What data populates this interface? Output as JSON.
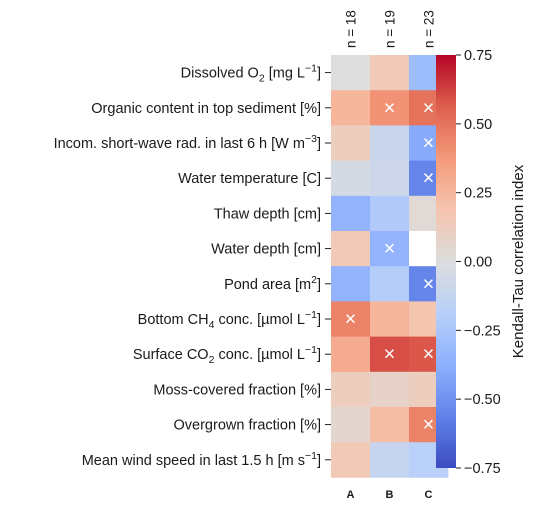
{
  "chart_data": {
    "type": "heatmap",
    "rows": [
      {
        "prefix": "Dissolved O",
        "sub": "2",
        "suffix": " [mg L",
        "sup": "−1",
        "end": "]"
      },
      {
        "prefix": "Organic content in top sediment [%]",
        "sub": "",
        "suffix": "",
        "sup": "",
        "end": ""
      },
      {
        "prefix": "Incom. short-wave rad. in last 6 h [W m",
        "sub": "",
        "suffix": "",
        "sup": "−3",
        "end": "]"
      },
      {
        "prefix": "Water temperature [C]",
        "sub": "",
        "suffix": "",
        "sup": "",
        "end": ""
      },
      {
        "prefix": "Thaw depth [cm]",
        "sub": "",
        "suffix": "",
        "sup": "",
        "end": ""
      },
      {
        "prefix": "Water depth [cm]",
        "sub": "",
        "suffix": "",
        "sup": "",
        "end": ""
      },
      {
        "prefix": "Pond area [m",
        "sub": "",
        "suffix": "",
        "sup": "2",
        "end": "]"
      },
      {
        "prefix": "Bottom CH",
        "sub": "4",
        "suffix": " conc. [µmol L",
        "sup": "−1",
        "end": "]"
      },
      {
        "prefix": "Surface CO",
        "sub": "2",
        "suffix": " conc. [µmol L",
        "sup": "−1",
        "end": "]"
      },
      {
        "prefix": "Moss-covered fraction [%]",
        "sub": "",
        "suffix": "",
        "sup": "",
        "end": ""
      },
      {
        "prefix": "Overgrown fraction [%]",
        "sub": "",
        "suffix": "",
        "sup": "",
        "end": ""
      },
      {
        "prefix": "Mean wind speed in last 1.5 h [m s",
        "sub": "",
        "suffix": "",
        "sup": "−1",
        "end": "]"
      }
    ],
    "columns": [
      "A",
      "B",
      "C"
    ],
    "n_labels": [
      "n = 18",
      "n = 19",
      "n = 23"
    ],
    "values": [
      [
        0.0,
        0.15,
        -0.3
      ],
      [
        0.25,
        0.4,
        0.5
      ],
      [
        0.12,
        -0.1,
        -0.4
      ],
      [
        -0.05,
        -0.08,
        -0.55
      ],
      [
        -0.35,
        -0.22,
        0.03
      ],
      [
        0.15,
        -0.35,
        null
      ],
      [
        -0.35,
        -0.2,
        -0.55
      ],
      [
        0.45,
        0.25,
        0.18
      ],
      [
        0.3,
        0.6,
        0.58
      ],
      [
        0.12,
        0.08,
        0.12
      ],
      [
        0.05,
        0.22,
        0.45
      ],
      [
        0.15,
        -0.12,
        -0.18
      ]
    ],
    "significant": [
      [
        false,
        false,
        false
      ],
      [
        false,
        true,
        true
      ],
      [
        false,
        false,
        true
      ],
      [
        false,
        false,
        true
      ],
      [
        false,
        false,
        false
      ],
      [
        false,
        true,
        false
      ],
      [
        false,
        false,
        true
      ],
      [
        true,
        false,
        false
      ],
      [
        false,
        true,
        true
      ],
      [
        false,
        false,
        false
      ],
      [
        false,
        false,
        true
      ],
      [
        false,
        false,
        false
      ]
    ],
    "marker": "×",
    "colorbar": {
      "label": "Kendall-Tau correlation index",
      "range": [
        -0.75,
        0.75
      ],
      "ticks": [
        "0.75",
        "0.50",
        "0.25",
        "0.00",
        "−0.25",
        "−0.50",
        "−0.75"
      ],
      "colormap": "coolwarm"
    }
  }
}
